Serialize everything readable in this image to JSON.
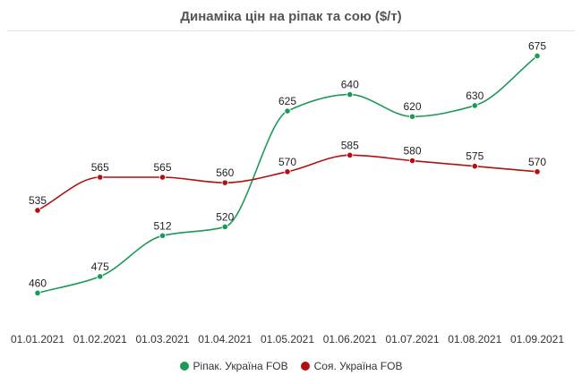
{
  "chart_data": {
    "type": "line",
    "title": "Динаміка цін на ріпак та сою ($/т)",
    "xlabel": "",
    "ylabel": "",
    "categories": [
      "01.01.2021",
      "01.02.2021",
      "01.03.2021",
      "01.04.2021",
      "01.05.2021",
      "01.06.2021",
      "01.07.2021",
      "01.08.2021",
      "01.09.2021"
    ],
    "ylim": [
      440,
      690
    ],
    "grid": false,
    "legend_position": "bottom",
    "series": [
      {
        "name": "Ріпак. Україна FOB",
        "color": "#1b9a56",
        "values": [
          460,
          475,
          512,
          520,
          625,
          640,
          620,
          630,
          675
        ]
      },
      {
        "name": "Соя. Україна FOB",
        "color": "#b30f0f",
        "values": [
          535,
          565,
          565,
          560,
          570,
          585,
          580,
          575,
          570
        ]
      }
    ]
  }
}
